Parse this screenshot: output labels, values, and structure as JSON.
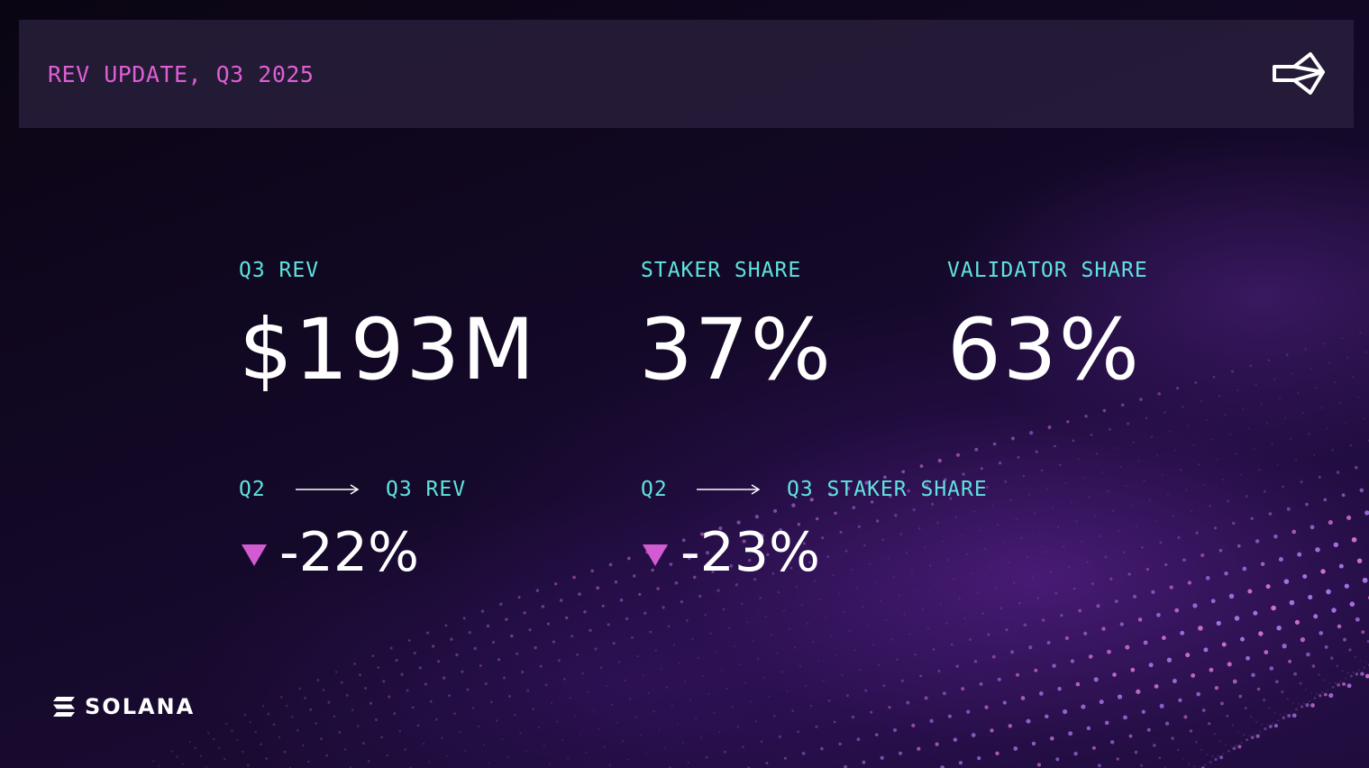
{
  "header": {
    "title": "REV UPDATE, Q3 2025",
    "share_icon": "share-icon"
  },
  "metrics": {
    "q3_rev": {
      "label": "Q3 REV",
      "value": "$193M"
    },
    "staker_share": {
      "label": "STAKER SHARE",
      "value": "37%"
    },
    "validator_share": {
      "label": "VALIDATOR SHARE",
      "value": "63%"
    }
  },
  "changes": {
    "rev": {
      "from_label": "Q2",
      "to_label": "Q3 REV",
      "value": "-22%",
      "direction_icon": "triangle-down-icon"
    },
    "staker": {
      "from_label": "Q2",
      "to_label": "Q3 STAKER SHARE",
      "value": "-23%",
      "direction_icon": "triangle-down-icon"
    }
  },
  "footer": {
    "brand": "SOLANA",
    "brand_icon": "solana-logo-icon"
  },
  "colors": {
    "accent_magenta": "#de5fd3",
    "accent_cyan": "#5fe3de",
    "text": "#ffffff",
    "background": "#0c0618"
  }
}
